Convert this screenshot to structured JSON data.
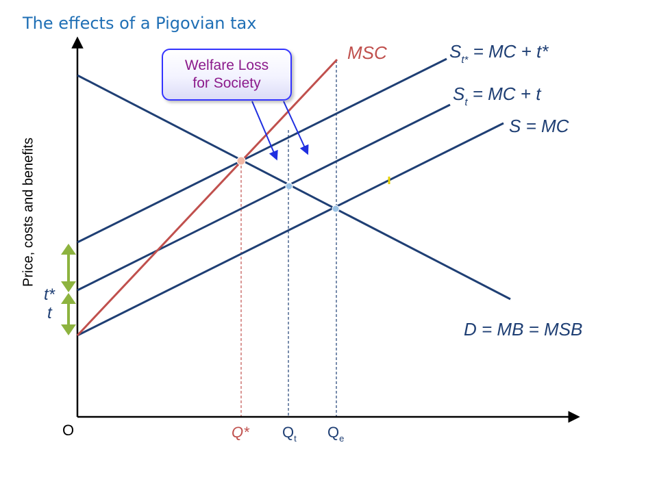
{
  "title": "The effects of a Pigovian tax",
  "axis": {
    "y_label": "Price, costs and benefits",
    "origin_label": "O"
  },
  "callout": {
    "line1": "Welfare Loss",
    "line2": "for Society"
  },
  "curves": {
    "msc": "MSC",
    "st_star_main": "S",
    "st_star_sub": "t*",
    "st_star_rest": " = MC + t*",
    "st_main": "S",
    "st_sub": "t",
    "st_rest": " = MC + t",
    "s": "S = MC",
    "d": "D = MB = MSB"
  },
  "tax_labels": {
    "t_star": "t*",
    "t": "t"
  },
  "quantities": {
    "q_star": "Q*",
    "qt_main": "Q",
    "qt_sub": "t",
    "qe_main": "Q",
    "qe_sub": "e"
  },
  "colors": {
    "title": "#1F6FB5",
    "curve": "#1F3F74",
    "msc": "#C0504D",
    "arrow": "#8DB33F",
    "callout_border": "#3333FF",
    "callout_text": "#8B1A8B",
    "pointer": "#1F2FE0",
    "guide_blue": "#1F3F74",
    "guide_red": "#C0504D",
    "marker": "#E6D000"
  }
}
